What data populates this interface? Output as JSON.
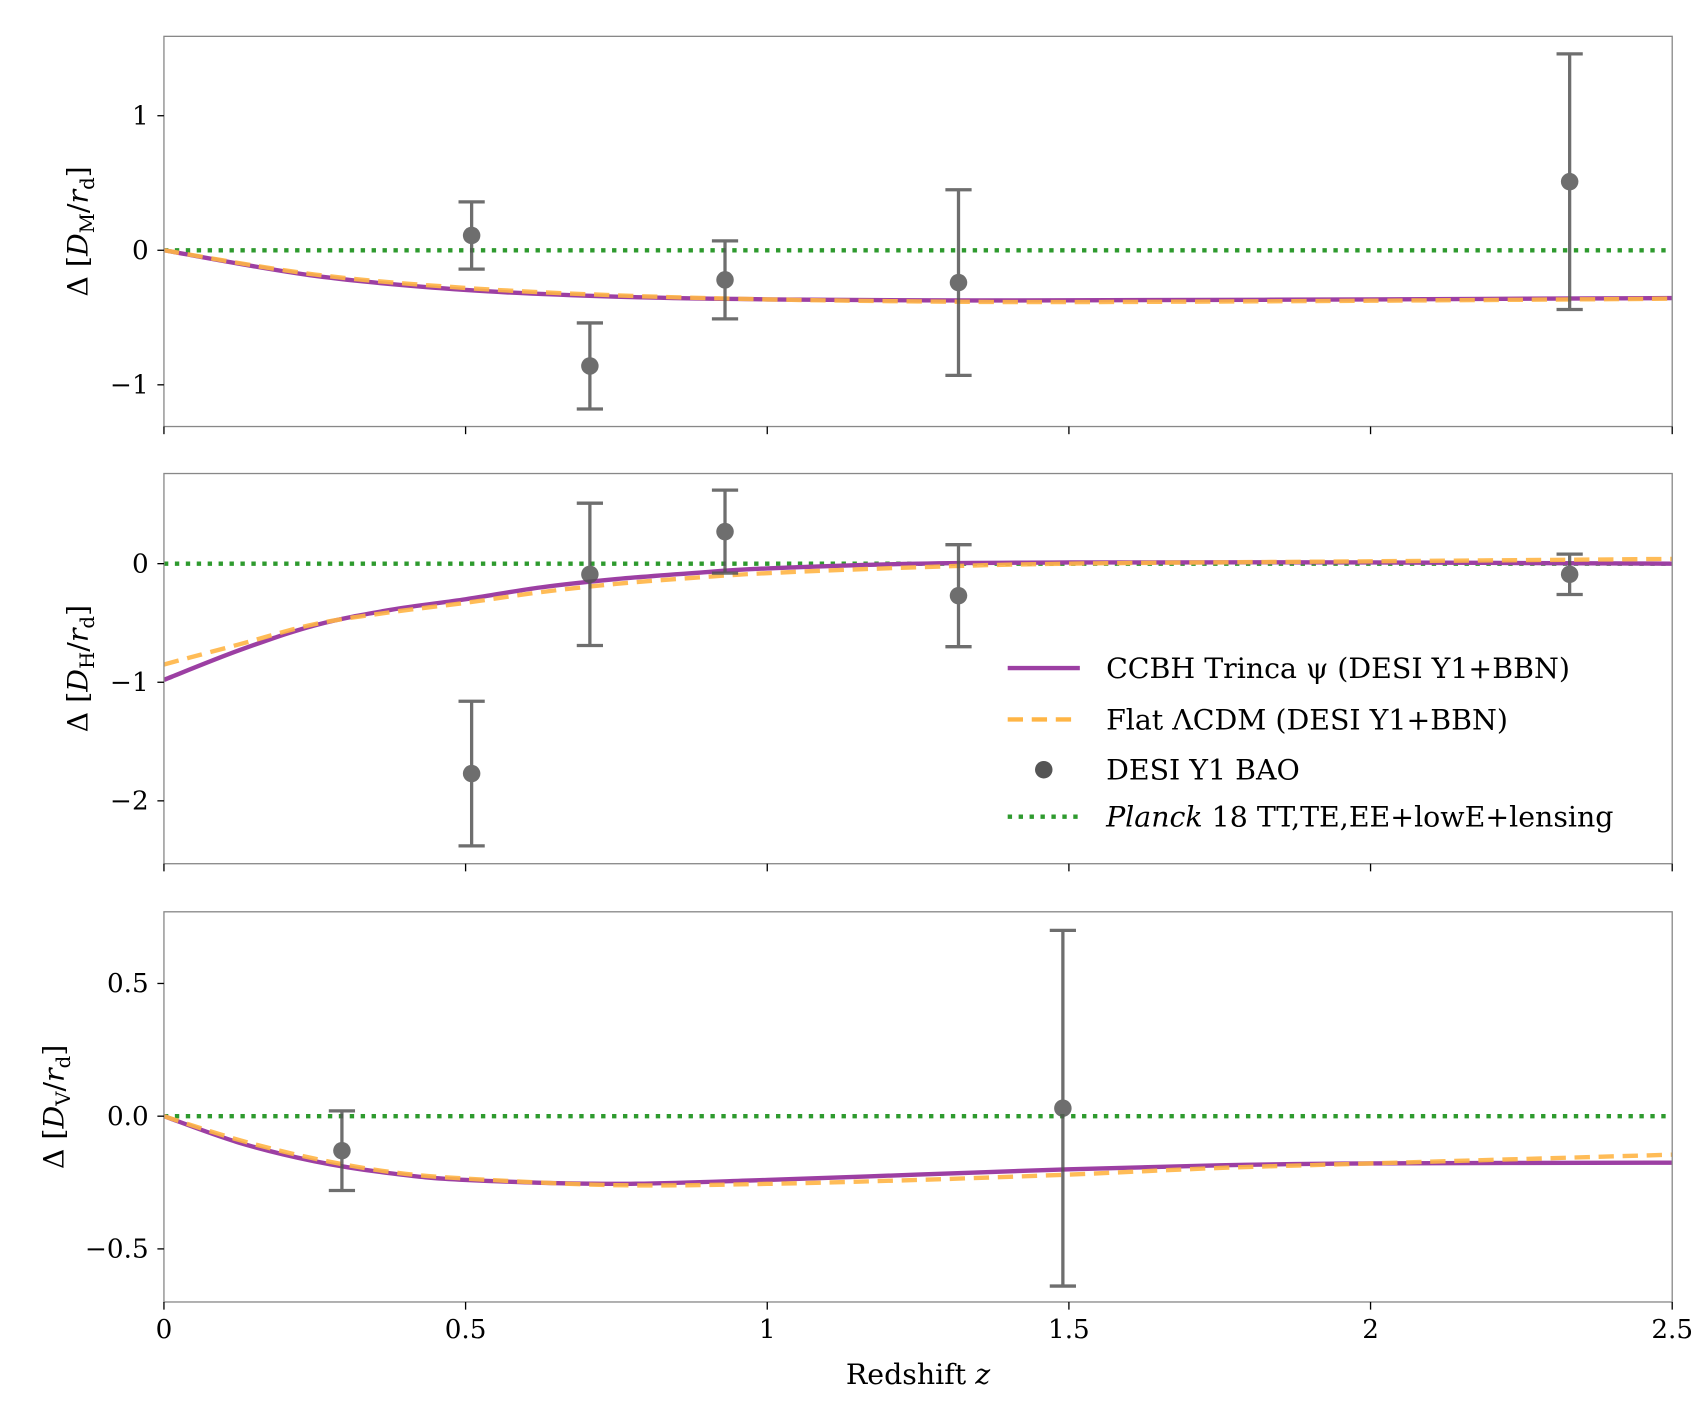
{
  "chart_data": [
    {
      "type": "line",
      "ylabel": {
        "prefix": "Δ [",
        "var": "D",
        "sub": "M",
        "mid": "/",
        "var2": "r",
        "sub2": "d",
        "suffix": "]"
      },
      "xlim": [
        0,
        2.5
      ],
      "ylim": [
        -1.31,
        1.59
      ],
      "yticks": [
        {
          "v": 1,
          "label": "1"
        },
        {
          "v": 0,
          "label": "0"
        },
        {
          "v": -1,
          "label": "−1"
        }
      ],
      "points": [
        {
          "z": 0.51,
          "y": 0.11,
          "err": 0.25
        },
        {
          "z": 0.706,
          "y": -0.86,
          "err": 0.32
        },
        {
          "z": 0.93,
          "y": -0.22,
          "err": 0.29
        },
        {
          "z": 1.317,
          "y": -0.24,
          "err": 0.69
        },
        {
          "z": 2.33,
          "y": 0.51,
          "err": 0.95
        }
      ],
      "ccbh": {
        "z": [
          0,
          0.25,
          0.5,
          0.75,
          1.0,
          1.25,
          1.5,
          2.0,
          2.5
        ],
        "y": [
          0,
          -0.19,
          -0.295,
          -0.345,
          -0.365,
          -0.372,
          -0.372,
          -0.365,
          -0.355
        ]
      },
      "lcdm": {
        "z": [
          0,
          0.25,
          0.5,
          0.75,
          1.0,
          1.25,
          1.5,
          2.0,
          2.5
        ],
        "y": [
          0,
          -0.18,
          -0.28,
          -0.335,
          -0.365,
          -0.38,
          -0.385,
          -0.375,
          -0.36
        ]
      },
      "planck": 0
    },
    {
      "type": "line",
      "ylabel": {
        "prefix": "Δ [",
        "var": "D",
        "sub": "H",
        "mid": "/",
        "var2": "r",
        "sub2": "d",
        "suffix": "]"
      },
      "xlim": [
        0,
        2.5
      ],
      "ylim": [
        -2.53,
        0.76
      ],
      "yticks": [
        {
          "v": 0,
          "label": "0"
        },
        {
          "v": -1,
          "label": "−1"
        },
        {
          "v": -2,
          "label": "−2"
        }
      ],
      "points": [
        {
          "z": 0.51,
          "y": -1.77,
          "err": 0.61
        },
        {
          "z": 0.706,
          "y": -0.09,
          "err": 0.6
        },
        {
          "z": 0.93,
          "y": 0.27,
          "err": 0.35
        },
        {
          "z": 1.317,
          "y": -0.27,
          "err": 0.43
        },
        {
          "z": 2.33,
          "y": -0.09,
          "err": 0.17
        }
      ],
      "ccbh": {
        "z": [
          0,
          0.125,
          0.25,
          0.375,
          0.5,
          0.625,
          0.75,
          0.875,
          1.0,
          1.25,
          1.5,
          2.0,
          2.5
        ],
        "y": [
          -0.98,
          -0.73,
          -0.52,
          -0.39,
          -0.3,
          -0.2,
          -0.13,
          -0.08,
          -0.04,
          0.0,
          0.01,
          0.01,
          0.0
        ]
      },
      "lcdm": {
        "z": [
          0,
          0.125,
          0.25,
          0.375,
          0.5,
          0.625,
          0.75,
          0.875,
          1.0,
          1.25,
          1.5,
          2.0,
          2.5
        ],
        "y": [
          -0.85,
          -0.68,
          -0.51,
          -0.41,
          -0.33,
          -0.24,
          -0.17,
          -0.12,
          -0.08,
          -0.03,
          0.0,
          0.02,
          0.04
        ]
      },
      "planck": 0
    },
    {
      "type": "line",
      "ylabel": {
        "prefix": "Δ [",
        "var": "D",
        "sub": "V",
        "mid": "/",
        "var2": "r",
        "sub2": "d",
        "suffix": "]"
      },
      "xlim": [
        0,
        2.5
      ],
      "ylim": [
        -0.7,
        0.77
      ],
      "yticks": [
        {
          "v": 0.5,
          "label": "0.5"
        },
        {
          "v": 0,
          "label": "0.0"
        },
        {
          "v": -0.5,
          "label": "−0.5"
        }
      ],
      "points": [
        {
          "z": 0.295,
          "y": -0.13,
          "err": 0.15
        },
        {
          "z": 1.49,
          "y": 0.03,
          "err": 0.67
        }
      ],
      "ccbh": {
        "z": [
          0,
          0.125,
          0.25,
          0.375,
          0.5,
          0.75,
          1.0,
          1.25,
          1.5,
          1.75,
          2.0,
          2.5
        ],
        "y": [
          0,
          -0.1,
          -0.17,
          -0.215,
          -0.24,
          -0.255,
          -0.24,
          -0.22,
          -0.2,
          -0.185,
          -0.178,
          -0.175
        ]
      },
      "lcdm": {
        "z": [
          0,
          0.125,
          0.25,
          0.375,
          0.5,
          0.75,
          1.0,
          1.25,
          1.5,
          1.75,
          2.0,
          2.5
        ],
        "y": [
          0,
          -0.09,
          -0.16,
          -0.21,
          -0.235,
          -0.26,
          -0.255,
          -0.24,
          -0.22,
          -0.195,
          -0.178,
          -0.145
        ]
      },
      "planck": 0
    }
  ],
  "xaxis": {
    "label_text": "Redshift ",
    "label_var": "z",
    "ticks": [
      {
        "v": 0,
        "label": "0"
      },
      {
        "v": 0.5,
        "label": "0.5"
      },
      {
        "v": 1,
        "label": "1"
      },
      {
        "v": 1.5,
        "label": "1.5"
      },
      {
        "v": 2,
        "label": "2"
      },
      {
        "v": 2.5,
        "label": "2.5"
      }
    ]
  },
  "legend": {
    "placement": "inside middle panel, lower-right",
    "entries": [
      {
        "key": "ccbh",
        "label": "CCBH Trinca ψ (DESI Y1+BBN)"
      },
      {
        "key": "lcdm",
        "label": "Flat ΛCDM (DESI Y1+BBN)"
      },
      {
        "key": "data",
        "label": "DESI Y1 BAO"
      },
      {
        "key": "planck",
        "label_italic": "Planck",
        "label": " 18 TT,TE,EE+lowE+lensing"
      }
    ]
  },
  "colors": {
    "ccbh": "#9c3fa3",
    "lcdm": "#ffb545",
    "data": "#555555",
    "planck": "#2e9a2e",
    "frame": "#888888"
  }
}
